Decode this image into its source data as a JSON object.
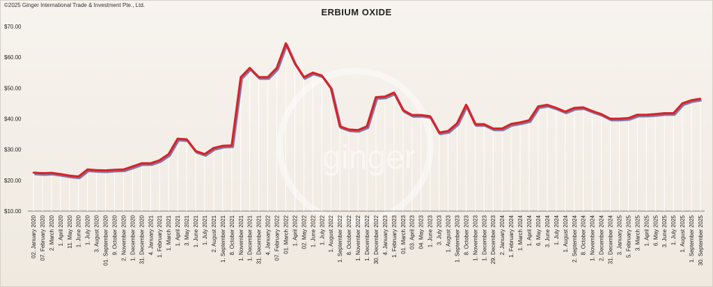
{
  "copyright": "©2025 Ginger International Trade & Investment Pte., Ltd.",
  "watermark": "ginger",
  "colors": {
    "line": "#d8232a",
    "shadow": "#4a4a8a",
    "drop": "#ffffff"
  },
  "chart_data": {
    "type": "line",
    "title": "ERBIUM OXIDE",
    "xlabel": "",
    "ylabel": "",
    "ylim": [
      10,
      70
    ],
    "yticks": [
      "$10.00",
      "$20.00",
      "$30.00",
      "$40.00",
      "$50.00",
      "$60.00",
      "$70.00"
    ],
    "ytick_values": [
      10,
      20,
      30,
      40,
      50,
      60,
      70
    ],
    "grid": false,
    "legend": "none",
    "categories": [
      "02. January 2020",
      "07. February 2020",
      "2. March 2020",
      "1. April 2020",
      "11. May 2020",
      "1. June 2020",
      "1. July 2020",
      "3. August 2020",
      "01. September 2020",
      "9. October 2020",
      "2. November 2020",
      "1. December 2020",
      "31. December 2020",
      "4. January 2021",
      "1. February 2021",
      "1. March 2021",
      "1. April 2021",
      "3. May 2021",
      "1. June 2021",
      "1. July 2021",
      "2. August 2021",
      "1. September 2021",
      "8. October 2021",
      "1. November 2021",
      "1. December 2021",
      "31. December 2021",
      "4. January 2022",
      "07. February 2022",
      "01. March 2022",
      "1. April 2022",
      "02. May 2022",
      "1. June 2022",
      "1. July 2022",
      "1. August 2022",
      "1. September 2022",
      "8. October 2022",
      "1. November 2022",
      "1. December 2022",
      "30. December 2022",
      "4. January 2023",
      "1. February 2023",
      "01. March 2023",
      "03. April 2023",
      "04. May 2023",
      "1. June 2023",
      "3. July 2023",
      "1. August 2023",
      "1. September 2023",
      "8. October 2023",
      "1. November 2023",
      "1. December 2023",
      "29. December 2023",
      "2. January 2024",
      "1. February 2024",
      "1. March 2024",
      "1. April 2024",
      "6. May 2024",
      "3. June 2024",
      "1. July 2024",
      "1. August 2024",
      "2. September 2024",
      "8. October 2024",
      "1. November 2024",
      "2. December 2024",
      "31. December 2024",
      "3. January 2025",
      "5. February 2025",
      "3. March 2025",
      "1. April 2025",
      "6. May 2025",
      "3. June 2025",
      "1. July 2025",
      "1. August 2025",
      "1. September 2025",
      "30. September 2025"
    ],
    "series": [
      {
        "values": [
          22.5,
          22.3,
          22.4,
          22.0,
          21.5,
          21.2,
          23.5,
          23.3,
          23.2,
          23.4,
          23.5,
          24.5,
          25.5,
          25.5,
          26.5,
          28.5,
          33.5,
          33.3,
          29.5,
          28.5,
          30.5,
          31.2,
          31.3,
          53.5,
          56.5,
          53.5,
          53.5,
          56.5,
          64.5,
          58.0,
          53.5,
          55.0,
          54.0,
          50.0,
          37.5,
          36.5,
          36.3,
          37.5,
          47.0,
          47.2,
          48.5,
          42.8,
          41.2,
          41.2,
          40.8,
          35.5,
          36.0,
          38.5,
          44.5,
          38.2,
          38.2,
          36.8,
          36.8,
          38.3,
          38.8,
          39.5,
          44.0,
          44.5,
          43.5,
          42.3,
          43.5,
          43.7,
          42.5,
          41.5,
          40.0,
          40.0,
          40.2,
          41.3,
          41.3,
          41.5,
          41.8,
          41.8,
          45.0,
          46.0,
          46.5
        ]
      }
    ]
  }
}
